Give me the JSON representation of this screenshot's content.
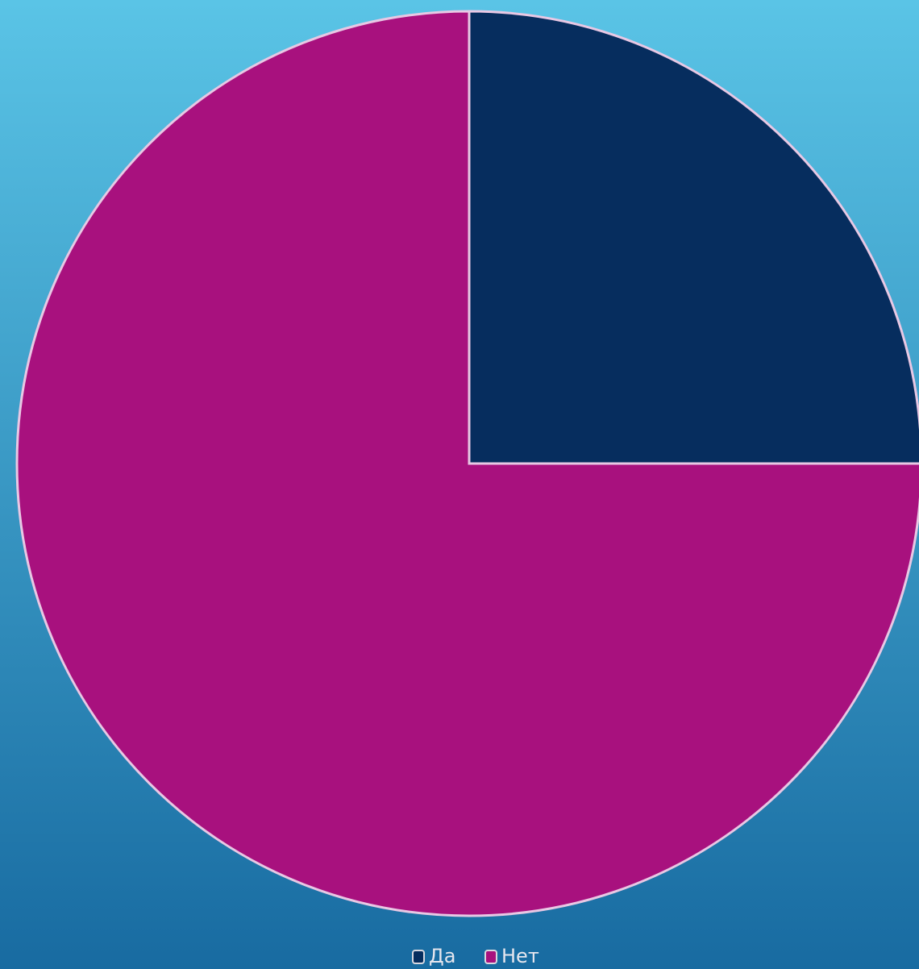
{
  "chart_data": {
    "type": "pie",
    "categories": [
      "Да",
      "Нет"
    ],
    "values": [
      25,
      75
    ],
    "colors": [
      "#062d5e",
      "#a8117e"
    ],
    "legend": "bottom"
  }
}
